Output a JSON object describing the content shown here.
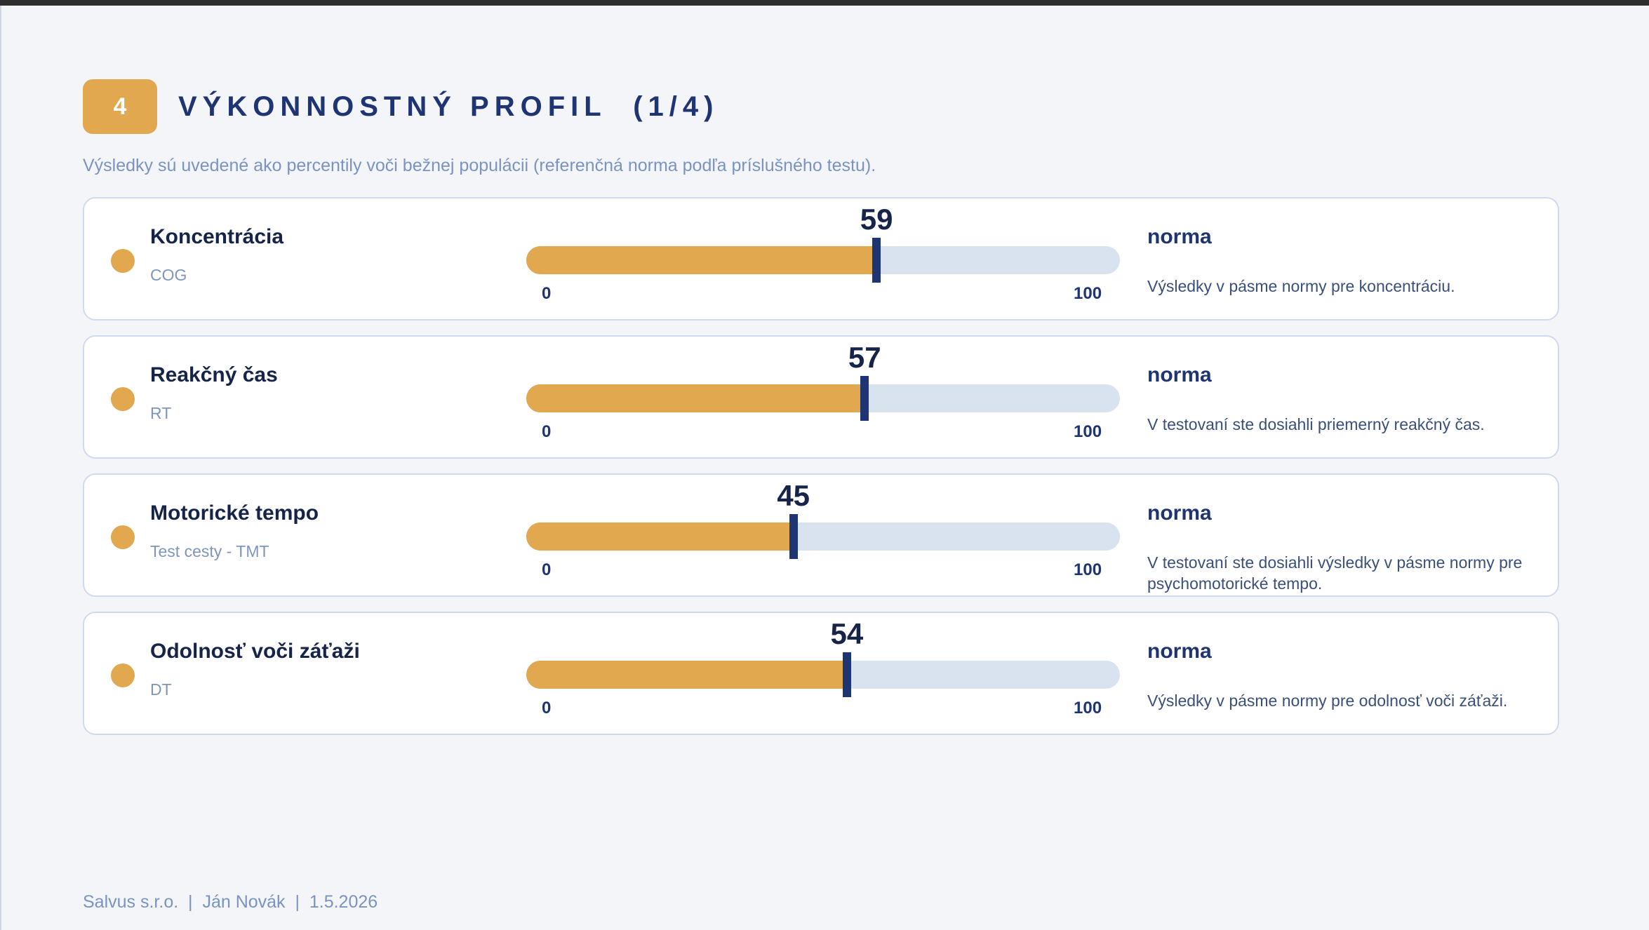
{
  "header": {
    "section_number": "4",
    "title": "VÝKONNOSTNÝ PROFIL  (1/4)",
    "subtitle": "Výsledky sú uvedené ako percentily voči bežnej populácii (referenčná norma podľa príslušného testu)."
  },
  "scale": {
    "min_label": "0",
    "max_label": "100"
  },
  "colors": {
    "accent": "#e1a84f",
    "primary": "#1f3472",
    "track": "#d9e2ef"
  },
  "metrics": [
    {
      "name": "Koncentrácia",
      "code": "COG",
      "score": 59,
      "score_label": "59",
      "norm": "norma",
      "description": "Výsledky v pásme normy pre koncentráciu."
    },
    {
      "name": "Reakčný čas",
      "code": "RT",
      "score": 57,
      "score_label": "57",
      "norm": "norma",
      "description": "V testovaní ste dosiahli priemerný reakčný čas."
    },
    {
      "name": "Motorické tempo",
      "code": "Test cesty - TMT",
      "score": 45,
      "score_label": "45",
      "norm": "norma",
      "description": "V testovaní ste dosiahli výsledky v pásme normy pre psychomotorické tempo."
    },
    {
      "name": "Odolnosť voči záťaži",
      "code": "DT",
      "score": 54,
      "score_label": "54",
      "norm": "norma",
      "description": "Výsledky v pásme normy pre odolnosť voči záťaži."
    }
  ],
  "footer": {
    "text": "Salvus s.r.o.  |  Ján Novák  |  1.5.2026"
  }
}
